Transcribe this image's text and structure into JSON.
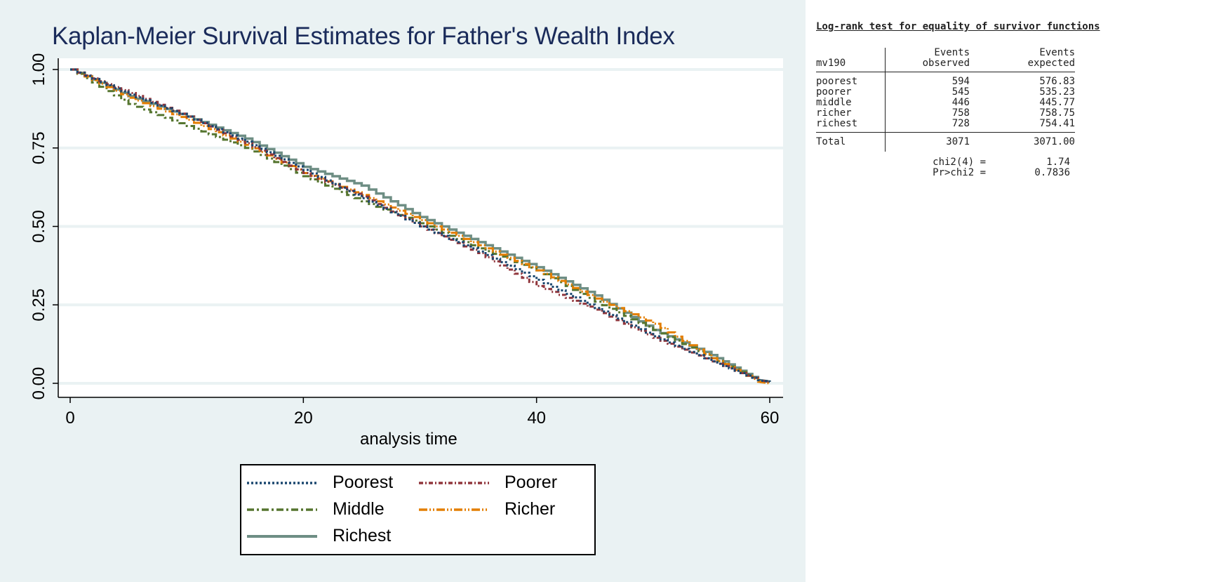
{
  "chart_data": {
    "type": "line",
    "title": "Kaplan-Meier Survival Estimates for Father's Wealth Index",
    "xlabel": "analysis time",
    "ylabel": "",
    "xlim": [
      0,
      60
    ],
    "ylim": [
      0,
      1
    ],
    "xticks": [
      "0",
      "20",
      "40",
      "60"
    ],
    "yticks": [
      "0.00",
      "0.25",
      "0.50",
      "0.75",
      "1.00"
    ],
    "grid": true,
    "legend_position": "bottom",
    "x": [
      0,
      5,
      10,
      15,
      20,
      25,
      30,
      35,
      40,
      45,
      50,
      55,
      59,
      60
    ],
    "series": [
      {
        "name": "Poorest",
        "color": "#1a476f",
        "dash": "3,3",
        "values": [
          1,
          0.92,
          0.85,
          0.77,
          0.68,
          0.59,
          0.5,
          0.42,
          0.33,
          0.24,
          0.15,
          0.07,
          0.01,
          0.005
        ]
      },
      {
        "name": "Poorer",
        "color": "#90353b",
        "dash": "6,3,2,3",
        "values": [
          1,
          0.925,
          0.85,
          0.765,
          0.67,
          0.595,
          0.5,
          0.415,
          0.31,
          0.235,
          0.145,
          0.07,
          0.01,
          0.005
        ]
      },
      {
        "name": "Middle",
        "color": "#55752f",
        "dash": "10,4,3,4",
        "values": [
          1,
          0.89,
          0.82,
          0.75,
          0.66,
          0.58,
          0.51,
          0.43,
          0.36,
          0.26,
          0.17,
          0.08,
          0.01,
          0.005
        ]
      },
      {
        "name": "Richer",
        "color": "#e37e00",
        "dash": "12,3,2,3,2,3",
        "values": [
          1,
          0.91,
          0.84,
          0.76,
          0.67,
          0.6,
          0.52,
          0.44,
          0.36,
          0.27,
          0.19,
          0.08,
          0.005,
          0.0
        ]
      },
      {
        "name": "Richest",
        "color": "#6e8e84",
        "dash": "",
        "values": [
          1,
          0.915,
          0.85,
          0.78,
          0.69,
          0.63,
          0.53,
          0.45,
          0.37,
          0.28,
          0.17,
          0.09,
          0.01,
          0.005
        ]
      }
    ]
  },
  "logrank": {
    "title": "Log-rank test for equality of survivor functions",
    "var": "mv190",
    "col_obs": [
      "Events",
      "observed"
    ],
    "col_exp": [
      "Events",
      "expected"
    ],
    "rows": [
      {
        "name": "poorest",
        "obs": "594",
        "exp": "576.83"
      },
      {
        "name": "poorer",
        "obs": "545",
        "exp": "535.23"
      },
      {
        "name": "middle",
        "obs": "446",
        "exp": "445.77"
      },
      {
        "name": "richer",
        "obs": "758",
        "exp": "758.75"
      },
      {
        "name": "richest",
        "obs": "728",
        "exp": "754.41"
      }
    ],
    "total": {
      "name": "Total",
      "obs": "3071",
      "exp": "3071.00"
    },
    "chi_label": "chi2(4) =",
    "chi_value": "1.74",
    "p_label": "Pr>chi2 =",
    "p_value": "0.7836"
  }
}
